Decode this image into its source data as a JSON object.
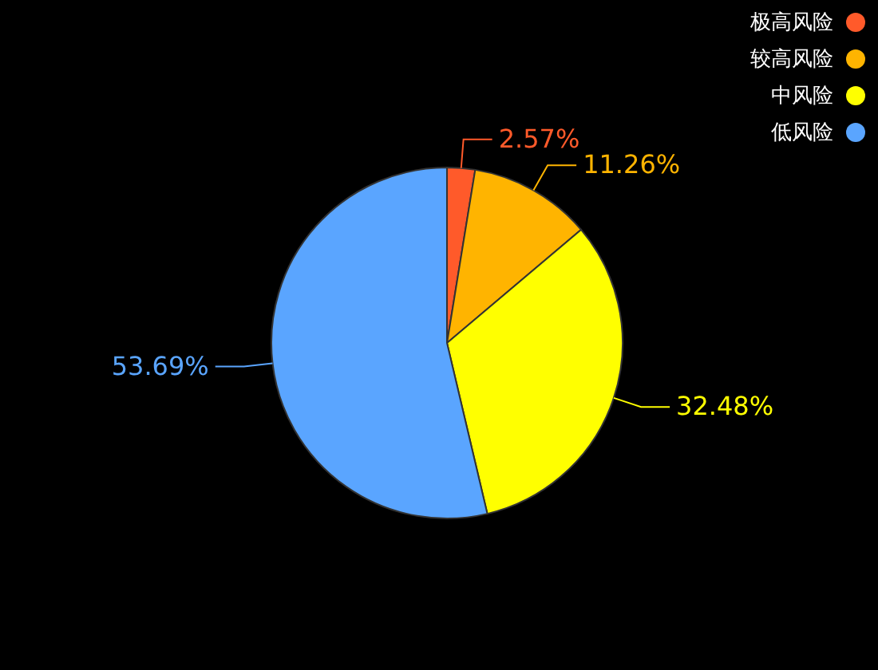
{
  "chart_data": {
    "type": "pie",
    "categories": [
      "极高风险",
      "较高风险",
      "中风险",
      "低风险"
    ],
    "values": [
      2.57,
      11.26,
      32.48,
      53.69
    ],
    "value_labels": [
      "2.57%",
      "11.26%",
      "32.48%",
      "53.69%"
    ],
    "colors": [
      "#ff5a2a",
      "#ffb400",
      "#ffff00",
      "#5aa5ff"
    ],
    "legend": "top right"
  }
}
